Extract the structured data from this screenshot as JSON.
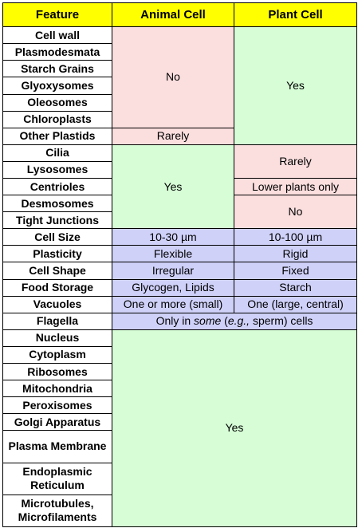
{
  "headers": [
    "Feature",
    "Animal Cell",
    "Plant Cell"
  ],
  "features": [
    "Cell wall",
    "Plasmodesmata",
    "Starch Grains",
    "Glyoxysomes",
    "Oleosomes",
    "Chloroplasts",
    "Other Plastids",
    "Cilia",
    "Lysosomes",
    "Centrioles",
    "Desmosomes",
    "Tight Junctions",
    "Cell Size",
    "Plasticity",
    "Cell Shape",
    "Food Storage",
    "Vacuoles",
    "Flagella",
    "Nucleus",
    "Cytoplasm",
    "Ribosomes",
    "Mitochondria",
    "Peroxisomes",
    "Golgi Apparatus",
    "Plasma Membrane",
    "Endoplasmic Reticulum",
    "Microtubules, Microfilaments"
  ],
  "cells": {
    "animal_no": "No",
    "plant_yes_top": "Yes",
    "animal_rarely": "Rarely",
    "animal_yes_mid": "Yes",
    "plant_rarely": "Rarely",
    "plant_lower": "Lower plants only",
    "plant_no": "No",
    "size_animal": "10-30 µm",
    "size_plant": "10-100 µm",
    "plast_animal": "Flexible",
    "plast_plant": "Rigid",
    "shape_animal": "Irregular",
    "shape_plant": "Fixed",
    "food_animal": "Glycogen, Lipids",
    "food_plant": "Starch",
    "vac_animal": "One or more (small)",
    "vac_plant": "One (large, central)",
    "flag_pre": "Only in ",
    "flag_em1": "some",
    "flag_mid": " (",
    "flag_em2": "e.g.,",
    "flag_post": " sperm) cells",
    "common_yes": "Yes"
  },
  "colors": {
    "header": "#ffff00",
    "no": "#fbdede",
    "yes": "#d6fdd6",
    "diff": "#cfd1f9"
  }
}
